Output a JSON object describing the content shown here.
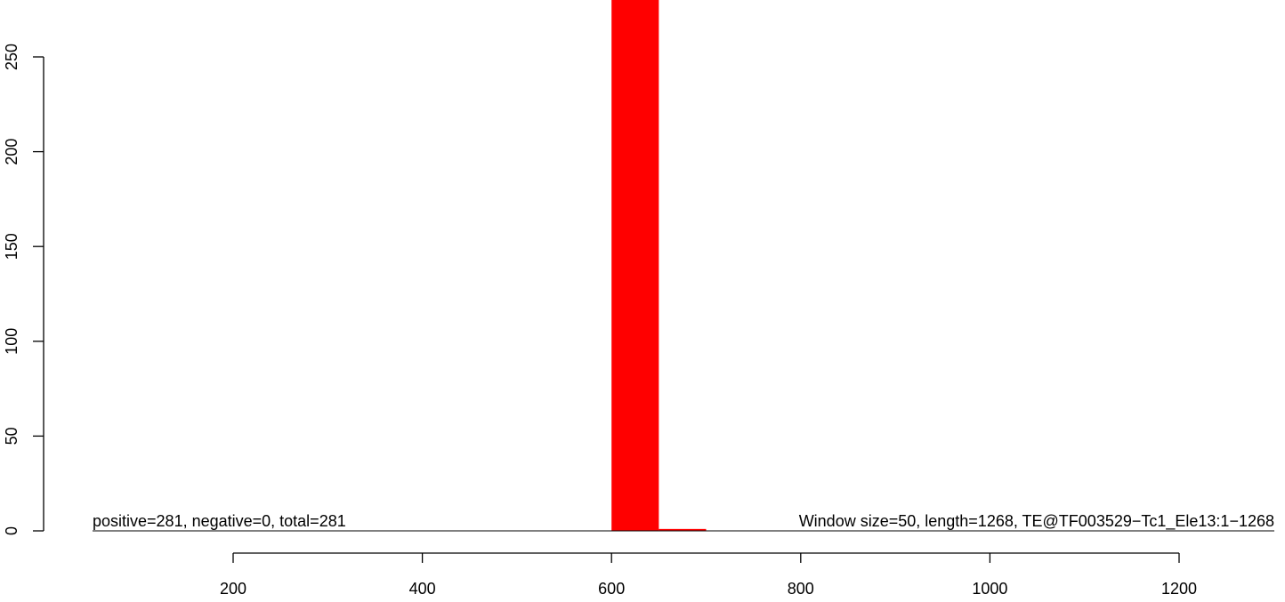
{
  "chart_data": {
    "type": "bar",
    "title": "",
    "xlabel": "",
    "ylabel": "",
    "xlim": [
      0,
      1268
    ],
    "ylim": [
      0,
      281
    ],
    "x_ticks": [
      200,
      400,
      600,
      800,
      1000,
      1200
    ],
    "x_tick_labels": [
      "200",
      "400",
      "600",
      "800",
      "1000",
      "1200"
    ],
    "y_ticks": [
      0,
      50,
      100,
      150,
      200,
      250
    ],
    "y_tick_labels": [
      "0",
      "50",
      "100",
      "150",
      "200",
      "250"
    ],
    "bar_color": "#ff0000",
    "bars": [
      {
        "x_start": 600,
        "x_end": 650,
        "value": 281
      },
      {
        "x_start": 650,
        "x_end": 700,
        "value": 1
      }
    ],
    "annotations": {
      "left": "positive=281, negative=0, total=281",
      "right": "Window size=50, length=1268, TE@TF003529−Tc1_Ele13:1−1268"
    },
    "grid": false,
    "legend": "none"
  }
}
